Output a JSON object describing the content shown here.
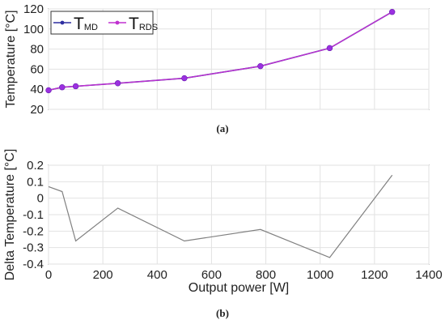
{
  "chart_data": [
    {
      "type": "line",
      "x": [
        0,
        50,
        100,
        255,
        500,
        780,
        1035,
        1265
      ],
      "series": [
        {
          "name": "T",
          "subscript": "MD",
          "color": "#2e2ea0",
          "values": [
            39,
            42,
            43,
            46,
            51,
            63,
            81,
            117
          ]
        },
        {
          "name": "T",
          "subscript": "RDS",
          "color": "#c030d0",
          "values": [
            39,
            42,
            43,
            46,
            51,
            63,
            81,
            117
          ]
        }
      ],
      "marker_color": "#9b30e0",
      "ylabel": "Temperature [°C]",
      "xlim": [
        0,
        1400
      ],
      "ylim": [
        20,
        120
      ],
      "yticks": [
        20,
        40,
        60,
        80,
        100,
        120
      ],
      "xtick_labels_shown": false,
      "grid": true,
      "legend_position": "top-left",
      "caption": "(a)"
    },
    {
      "type": "line",
      "x": [
        0,
        50,
        100,
        255,
        500,
        780,
        1035,
        1265
      ],
      "series": [
        {
          "color": "#808080",
          "values": [
            0.07,
            0.04,
            -0.26,
            -0.06,
            -0.26,
            -0.19,
            -0.36,
            0.14
          ]
        }
      ],
      "xlabel": "Output power [W]",
      "ylabel": "Delta Temperature [°C]",
      "xlim": [
        0,
        1400
      ],
      "ylim": [
        -0.4,
        0.2
      ],
      "xticks": [
        0,
        200,
        400,
        600,
        800,
        1000,
        1200,
        1400
      ],
      "yticks": [
        -0.4,
        -0.3,
        -0.2,
        -0.1,
        0,
        0.1,
        0.2
      ],
      "grid": true,
      "caption": "(b)"
    }
  ]
}
